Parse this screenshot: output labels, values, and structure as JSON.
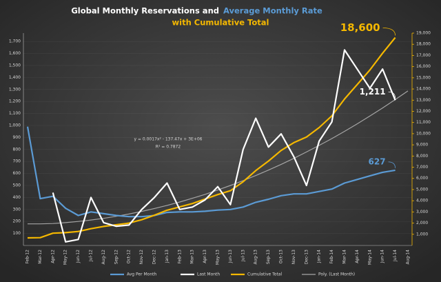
{
  "chart_data": {
    "type": "line",
    "title": [
      "Global Monthly Reservations and",
      "Average Monthly Rate",
      "with Cumulative Total"
    ],
    "categories": [
      "Feb-12",
      "Mar-12",
      "Apr-12",
      "May-12",
      "Jun-12",
      "Jul-12",
      "Aug-12",
      "Sep-12",
      "Oct-12",
      "Nov-12",
      "Dec-12",
      "Jan-13",
      "Feb-13",
      "Mar-13",
      "Apr-13",
      "May-13",
      "Jun-13",
      "Jul-13",
      "Aug-13",
      "Sep-13",
      "Oct-13",
      "Nov-13",
      "Dec-13",
      "Jan-14",
      "Feb-14",
      "Mar-14",
      "Apr-14",
      "May-14",
      "Jun-14",
      "Jul-14",
      "Aug-14"
    ],
    "series": [
      {
        "name": "Avg Per Month",
        "color": "#5b9bd5",
        "axis": "y",
        "values": [
          990,
          390,
          410,
          310,
          250,
          280,
          265,
          250,
          240,
          240,
          250,
          275,
          280,
          280,
          285,
          295,
          300,
          320,
          360,
          385,
          415,
          430,
          430,
          450,
          470,
          520,
          550,
          580,
          610,
          627,
          null
        ],
        "value_labels": [
          null,
          null,
          null,
          null,
          null,
          null,
          null,
          null,
          null,
          null,
          null,
          null,
          null,
          null,
          null,
          null,
          null,
          null,
          null,
          null,
          null,
          null,
          null,
          null,
          null,
          null,
          null,
          null,
          null,
          "627",
          null
        ]
      },
      {
        "name": "Last Month",
        "color": "#ffffff",
        "axis": "y",
        "values": [
          null,
          null,
          440,
          30,
          50,
          400,
          190,
          160,
          170,
          300,
          400,
          520,
          300,
          320,
          380,
          490,
          340,
          800,
          1060,
          820,
          930,
          740,
          500,
          870,
          1030,
          1630,
          1470,
          1310,
          1470,
          1211,
          null
        ],
        "value_labels": [
          null,
          null,
          null,
          null,
          null,
          null,
          null,
          null,
          null,
          null,
          null,
          null,
          null,
          null,
          null,
          null,
          null,
          null,
          null,
          null,
          null,
          null,
          null,
          null,
          null,
          null,
          null,
          null,
          null,
          "1,211",
          null
        ]
      },
      {
        "name": "Cumulative Total",
        "color": "#f5b800",
        "axis": "y2",
        "values": [
          680,
          700,
          1100,
          1150,
          1250,
          1500,
          1700,
          1850,
          2000,
          2300,
          2700,
          3150,
          3450,
          3750,
          4150,
          4550,
          4900,
          5700,
          6700,
          7550,
          8500,
          9200,
          9700,
          10550,
          11600,
          13100,
          14400,
          15700,
          17200,
          18600,
          null
        ],
        "value_labels": [
          null,
          null,
          null,
          null,
          null,
          null,
          null,
          null,
          null,
          null,
          null,
          null,
          null,
          null,
          null,
          null,
          null,
          null,
          null,
          null,
          null,
          null,
          null,
          null,
          null,
          null,
          null,
          null,
          null,
          "18,600",
          null
        ]
      },
      {
        "name": "Poly. (Last Month)",
        "color": "#a6a6a6",
        "axis": "y",
        "values": [
          180,
          180,
          183,
          190,
          200,
          212,
          226,
          243,
          262,
          284,
          308,
          334,
          362,
          393,
          426,
          462,
          500,
          540,
          583,
          628,
          676,
          726,
          779,
          834,
          891,
          951,
          1014,
          1079,
          1146,
          1216,
          1288
        ]
      }
    ],
    "annotations": [
      "y = 0.0017x² - 137.47x + 3E+06",
      "R² = 0.7872"
    ],
    "ylim": [
      0,
      1770
    ],
    "yticks": [
      100,
      200,
      300,
      400,
      500,
      600,
      700,
      800,
      900,
      {
        "value": 1000,
        "label": "1,000"
      },
      {
        "value": 1100,
        "label": "1,100"
      },
      {
        "value": 1200,
        "label": "1,200"
      },
      {
        "value": 1300,
        "label": "1,300"
      },
      {
        "value": 1400,
        "label": "1,400"
      },
      {
        "value": 1500,
        "label": "1,500"
      },
      {
        "value": 1600,
        "label": "1,600"
      },
      {
        "value": 1700,
        "label": "1,700"
      }
    ],
    "y2lim": [
      0,
      19000
    ],
    "y2ticks": [
      {
        "value": 1000,
        "label": "1,000"
      },
      {
        "value": 2000,
        "label": "2,000"
      },
      {
        "value": 3000,
        "label": "3,000"
      },
      {
        "value": 4000,
        "label": "4,000"
      },
      {
        "value": 5000,
        "label": "5,000"
      },
      {
        "value": 6000,
        "label": "6,000"
      },
      {
        "value": 7000,
        "label": "7,000"
      },
      {
        "value": 8000,
        "label": "8,000"
      },
      {
        "value": 9000,
        "label": "9,000"
      },
      {
        "value": 10000,
        "label": "10,000"
      },
      {
        "value": 11000,
        "label": "11,000"
      },
      {
        "value": 12000,
        "label": "12,000"
      },
      {
        "value": 13000,
        "label": "13,000"
      },
      {
        "value": 14000,
        "label": "14,000"
      },
      {
        "value": 15000,
        "label": "15,000"
      },
      {
        "value": 16000,
        "label": "16,000"
      },
      {
        "value": 17000,
        "label": "17,000"
      },
      {
        "value": 18000,
        "label": "18,000"
      },
      {
        "value": 19000,
        "label": "19,000"
      }
    ],
    "grid": true,
    "legend": "bottom"
  }
}
